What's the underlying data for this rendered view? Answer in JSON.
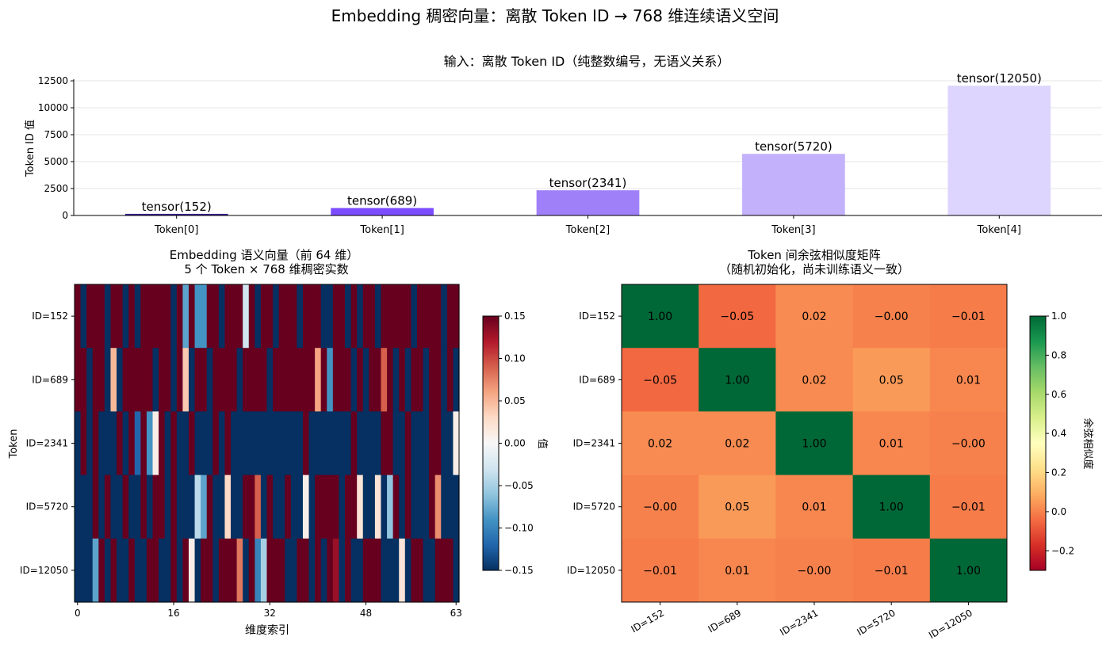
{
  "figure": {
    "suptitle": "Embedding 稠密向量：离散 Token ID → 768 维连续语义空间"
  },
  "chart_data": [
    {
      "type": "bar",
      "title": "输入：离散 Token ID（纯整数编号，无语义关系）",
      "xlabel": "",
      "ylabel": "Token ID 值",
      "categories": [
        "Token[0]",
        "Token[1]",
        "Token[2]",
        "Token[3]",
        "Token[4]"
      ],
      "values": [
        152,
        689,
        2341,
        5720,
        12050
      ],
      "bar_labels": [
        "tensor(152)",
        "tensor(689)",
        "tensor(2341)",
        "tensor(5720)",
        "tensor(12050)"
      ],
      "bar_colors": [
        "#3b1f8f",
        "#7c4dff",
        "#a080f8",
        "#c3b1fb",
        "#ddd5fd"
      ],
      "label_color": "#4a2a8a",
      "yticks": [
        0,
        2500,
        5000,
        7500,
        10000,
        12500
      ],
      "ylim": [
        0,
        12650
      ],
      "grid": "y"
    },
    {
      "type": "heatmap",
      "title": "Embedding 语义向量（前 64 维）",
      "subtitle": "5 个 Token × 768 维稠密实数",
      "xlabel": "维度索引",
      "ylabel": "Token",
      "rows": [
        "ID=152",
        "ID=689",
        "ID=2341",
        "ID=5720",
        "ID=12050"
      ],
      "xticks": [
        0,
        16,
        32,
        48,
        63
      ],
      "values": [
        [
          0.15,
          -0.15,
          0.15,
          0.15,
          0.15,
          -0.15,
          0.15,
          0.15,
          -0.15,
          0.15,
          -0.15,
          0.15,
          0.15,
          0.15,
          0.15,
          0.15,
          -0.15,
          0.15,
          -0.08,
          0.15,
          -0.09,
          -0.09,
          0.15,
          0.15,
          -0.15,
          0.15,
          0.15,
          0.15,
          -0.03,
          0.15,
          -0.15,
          0.15,
          0.15,
          -0.15,
          0.15,
          0.15,
          0.15,
          -0.15,
          0.15,
          0.15,
          0.15,
          -0.15,
          -0.15,
          0.15,
          0.15,
          -0.15,
          0.15,
          -0.15,
          0.15,
          0.15,
          -0.15,
          0.15,
          0.15,
          0.15,
          0.15,
          0.15,
          -0.15,
          0.15,
          0.15,
          0.15,
          0.15,
          -0.15,
          0.15,
          0.15
        ],
        [
          0.15,
          0.15,
          -0.15,
          0.15,
          0.15,
          -0.15,
          0.05,
          -0.15,
          0.15,
          0.15,
          0.15,
          0.15,
          0.15,
          -0.15,
          0.15,
          0.15,
          -0.15,
          0.15,
          0.04,
          -0.15,
          0.15,
          0.15,
          -0.15,
          0.15,
          0.15,
          0.15,
          0.15,
          -0.15,
          0.15,
          0.15,
          0.15,
          0.15,
          -0.15,
          0.15,
          0.15,
          0.15,
          0.15,
          0.15,
          0.15,
          0.15,
          0.06,
          0.15,
          -0.09,
          0.15,
          0.15,
          0.15,
          -0.15,
          0.15,
          -0.15,
          0.15,
          0.15,
          0.09,
          0.15,
          -0.15,
          0.15,
          -0.15,
          0.15,
          0.15,
          -0.15,
          0.15,
          0.15,
          -0.15,
          0.15,
          -0.15
        ],
        [
          -0.15,
          0.15,
          -0.15,
          0.15,
          -0.15,
          -0.15,
          -0.15,
          0.15,
          -0.15,
          0.15,
          -0.12,
          0.15,
          -0.09,
          0.01,
          0.15,
          -0.15,
          0.15,
          -0.15,
          -0.15,
          0.15,
          -0.15,
          -0.15,
          -0.15,
          0.15,
          -0.15,
          0.15,
          -0.15,
          -0.15,
          -0.15,
          -0.15,
          -0.15,
          -0.15,
          -0.15,
          -0.15,
          -0.15,
          -0.15,
          -0.15,
          -0.15,
          0.15,
          -0.15,
          -0.15,
          -0.15,
          -0.15,
          -0.15,
          -0.15,
          -0.15,
          0.15,
          -0.15,
          -0.15,
          -0.15,
          -0.15,
          0.15,
          0.15,
          -0.15,
          -0.15,
          0.15,
          -0.15,
          -0.15,
          -0.15,
          0.15,
          0.15,
          -0.15,
          -0.15,
          0.01
        ],
        [
          -0.15,
          -0.15,
          -0.15,
          0.15,
          -0.15,
          0.15,
          -0.15,
          -0.15,
          0.15,
          -0.15,
          -0.15,
          0.15,
          -0.15,
          0.15,
          0.15,
          -0.15,
          0.15,
          -0.15,
          -0.15,
          -0.15,
          -0.04,
          -0.08,
          0.15,
          -0.15,
          -0.15,
          0.03,
          -0.15,
          -0.15,
          0.15,
          0.15,
          0.09,
          -0.15,
          0.15,
          -0.15,
          -0.15,
          0.15,
          -0.15,
          -0.15,
          0.01,
          -0.15,
          0.15,
          0.15,
          0.15,
          0.15,
          -0.15,
          0.15,
          0.15,
          0.02,
          -0.15,
          -0.15,
          0.02,
          -0.15,
          -0.06,
          0.15,
          -0.15,
          0.15,
          -0.15,
          -0.15,
          -0.15,
          0.15,
          0.07,
          -0.15,
          -0.15,
          -0.15
        ],
        [
          -0.15,
          -0.15,
          -0.15,
          -0.08,
          0.15,
          -0.15,
          0.15,
          -0.15,
          -0.15,
          0.15,
          -0.15,
          -0.15,
          0.15,
          0.15,
          -0.15,
          -0.15,
          0.15,
          -0.15,
          0.15,
          0.01,
          -0.15,
          0.15,
          0.15,
          -0.15,
          0.15,
          0.15,
          0.15,
          0.08,
          -0.15,
          0.15,
          -0.1,
          -0.05,
          0.15,
          0.15,
          0.15,
          -0.15,
          -0.15,
          0.15,
          0.15,
          -0.15,
          0.15,
          -0.15,
          0.15,
          0.13,
          -0.15,
          0.15,
          -0.15,
          -0.15,
          0.15,
          0.15,
          0.15,
          -0.15,
          -0.15,
          -0.15,
          0.02,
          -0.15,
          0.15,
          0.15,
          -0.15,
          -0.15,
          0.15,
          0.15,
          0.15,
          -0.15
        ]
      ],
      "vmin": -0.15,
      "vmax": 0.15,
      "colormap": "RdBu_r",
      "colorbar_label": "值",
      "colorbar_ticks": [
        "0.15",
        "0.10",
        "0.05",
        "0.00",
        "−0.05",
        "−0.10",
        "−0.15"
      ]
    },
    {
      "type": "heatmap",
      "title": "Token 间余弦相似度矩阵",
      "subtitle": "（随机初始化，尚未训练语义一致）",
      "rows": [
        "ID=152",
        "ID=689",
        "ID=2341",
        "ID=5720",
        "ID=12050"
      ],
      "columns": [
        "ID=152",
        "ID=689",
        "ID=2341",
        "ID=5720",
        "ID=12050"
      ],
      "values": [
        [
          1.0,
          -0.05,
          0.02,
          -0.0,
          -0.01
        ],
        [
          -0.05,
          1.0,
          0.02,
          0.05,
          0.01
        ],
        [
          0.02,
          0.02,
          1.0,
          0.01,
          -0.0
        ],
        [
          -0.0,
          0.05,
          0.01,
          1.0,
          -0.01
        ],
        [
          -0.01,
          0.01,
          -0.0,
          -0.01,
          1.0
        ]
      ],
      "cell_labels": [
        [
          "1.00",
          "−0.05",
          "0.02",
          "−0.00",
          "−0.01"
        ],
        [
          "−0.05",
          "1.00",
          "0.02",
          "0.05",
          "0.01"
        ],
        [
          "0.02",
          "0.02",
          "1.00",
          "0.01",
          "−0.00"
        ],
        [
          "−0.00",
          "0.05",
          "0.01",
          "1.00",
          "−0.01"
        ],
        [
          "−0.01",
          "0.01",
          "−0.00",
          "−0.01",
          "1.00"
        ]
      ],
      "vmin": -0.3,
      "vmax": 1.0,
      "colormap": "RdYlGn",
      "colorbar_label": "余弦相似度",
      "colorbar_ticks": [
        "1.0",
        "0.8",
        "0.6",
        "0.4",
        "0.2",
        "0.0",
        "−0.2"
      ]
    }
  ]
}
